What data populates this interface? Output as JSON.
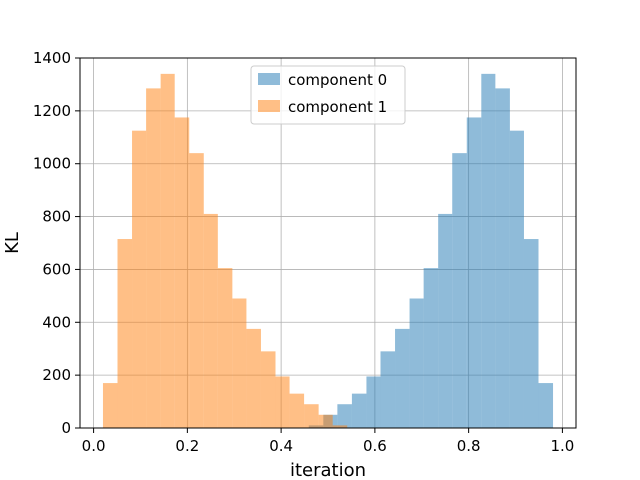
{
  "chart_data": {
    "type": "bar",
    "xlabel": "iteration",
    "ylabel": "KL",
    "xlim": [
      -0.029,
      1.029
    ],
    "ylim": [
      0,
      1400
    ],
    "xticks": [
      "0.0",
      "0.2",
      "0.4",
      "0.6",
      "0.8",
      "1.0"
    ],
    "xtick_values": [
      0.0,
      0.2,
      0.4,
      0.6,
      0.8,
      1.0
    ],
    "yticks": [
      "0",
      "200",
      "400",
      "600",
      "800",
      "1000",
      "1200",
      "1400"
    ],
    "ytick_values": [
      0,
      200,
      400,
      600,
      800,
      1000,
      1200,
      1400
    ],
    "grid": true,
    "legend_position": "top-center",
    "series": [
      {
        "name": "component 0",
        "color": "#1f77b4",
        "opacity": 0.5,
        "bins": [
          {
            "x0": 0.459,
            "x1": 0.49,
            "value": 10
          },
          {
            "x0": 0.49,
            "x1": 0.52,
            "value": 50
          },
          {
            "x0": 0.52,
            "x1": 0.551,
            "value": 90
          },
          {
            "x0": 0.551,
            "x1": 0.582,
            "value": 130
          },
          {
            "x0": 0.582,
            "x1": 0.612,
            "value": 195
          },
          {
            "x0": 0.612,
            "x1": 0.643,
            "value": 290
          },
          {
            "x0": 0.643,
            "x1": 0.674,
            "value": 375
          },
          {
            "x0": 0.674,
            "x1": 0.704,
            "value": 490
          },
          {
            "x0": 0.704,
            "x1": 0.735,
            "value": 605
          },
          {
            "x0": 0.735,
            "x1": 0.765,
            "value": 810
          },
          {
            "x0": 0.765,
            "x1": 0.796,
            "value": 1040
          },
          {
            "x0": 0.796,
            "x1": 0.827,
            "value": 1175
          },
          {
            "x0": 0.827,
            "x1": 0.857,
            "value": 1340
          },
          {
            "x0": 0.857,
            "x1": 0.888,
            "value": 1285
          },
          {
            "x0": 0.888,
            "x1": 0.918,
            "value": 1125
          },
          {
            "x0": 0.918,
            "x1": 0.949,
            "value": 715
          },
          {
            "x0": 0.949,
            "x1": 0.98,
            "value": 170
          }
        ]
      },
      {
        "name": "component 1",
        "color": "#ff7f0e",
        "opacity": 0.5,
        "bins": [
          {
            "x0": 0.02,
            "x1": 0.051,
            "value": 170
          },
          {
            "x0": 0.051,
            "x1": 0.082,
            "value": 715
          },
          {
            "x0": 0.082,
            "x1": 0.112,
            "value": 1125
          },
          {
            "x0": 0.112,
            "x1": 0.143,
            "value": 1285
          },
          {
            "x0": 0.143,
            "x1": 0.173,
            "value": 1340
          },
          {
            "x0": 0.173,
            "x1": 0.204,
            "value": 1175
          },
          {
            "x0": 0.204,
            "x1": 0.235,
            "value": 1040
          },
          {
            "x0": 0.235,
            "x1": 0.265,
            "value": 810
          },
          {
            "x0": 0.265,
            "x1": 0.296,
            "value": 605
          },
          {
            "x0": 0.296,
            "x1": 0.326,
            "value": 490
          },
          {
            "x0": 0.326,
            "x1": 0.357,
            "value": 375
          },
          {
            "x0": 0.357,
            "x1": 0.388,
            "value": 290
          },
          {
            "x0": 0.388,
            "x1": 0.418,
            "value": 195
          },
          {
            "x0": 0.418,
            "x1": 0.449,
            "value": 130
          },
          {
            "x0": 0.449,
            "x1": 0.48,
            "value": 90
          },
          {
            "x0": 0.48,
            "x1": 0.51,
            "value": 50
          },
          {
            "x0": 0.51,
            "x1": 0.541,
            "value": 10
          }
        ]
      }
    ]
  }
}
